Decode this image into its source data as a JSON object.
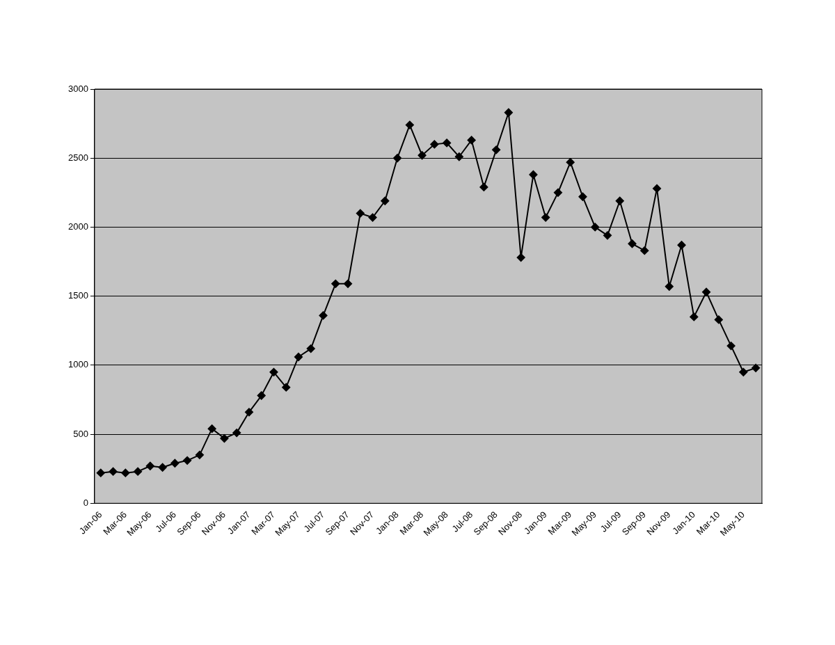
{
  "chart_data": {
    "type": "line",
    "categories": [
      "Jan-06",
      null,
      "Mar-06",
      null,
      "May-06",
      null,
      "Jul-06",
      null,
      "Sep-06",
      null,
      "Nov-06",
      null,
      "Jan-07",
      null,
      "Mar-07",
      null,
      "May-07",
      null,
      "Jul-07",
      null,
      "Sep-07",
      null,
      "Nov-07",
      null,
      "Jan-08",
      null,
      "Mar-08",
      null,
      "May-08",
      null,
      "Jul-08",
      null,
      "Sep-08",
      null,
      "Nov-08",
      null,
      "Jan-09",
      null,
      "Mar-09",
      null,
      "May-09",
      null,
      "Jul-09",
      null,
      "Sep-09",
      null,
      "Nov-09",
      null,
      "Jan-10",
      null,
      "Mar-10",
      null,
      "May-10",
      null
    ],
    "series": [
      {
        "color": "#000000",
        "values": [
          220,
          230,
          220,
          230,
          270,
          260,
          290,
          310,
          350,
          540,
          470,
          510,
          660,
          780,
          950,
          840,
          1060,
          1120,
          1360,
          1590,
          1590,
          2100,
          2070,
          2190,
          2500,
          2740,
          2520,
          2600,
          2610,
          2510,
          2630,
          2290,
          2560,
          2830,
          1780,
          2380,
          2070,
          2250,
          2470,
          2220,
          2000,
          1940,
          2190,
          1880,
          1830,
          2280,
          1570,
          1870,
          1350,
          1530,
          1330,
          1140,
          950,
          980
        ]
      }
    ],
    "ylim": [
      0,
      3000
    ],
    "yticks": [
      0,
      500,
      1000,
      1500,
      2000,
      2500,
      3000
    ],
    "grid": "y",
    "marker": "diamond",
    "line_style": "solid",
    "legend": false
  }
}
